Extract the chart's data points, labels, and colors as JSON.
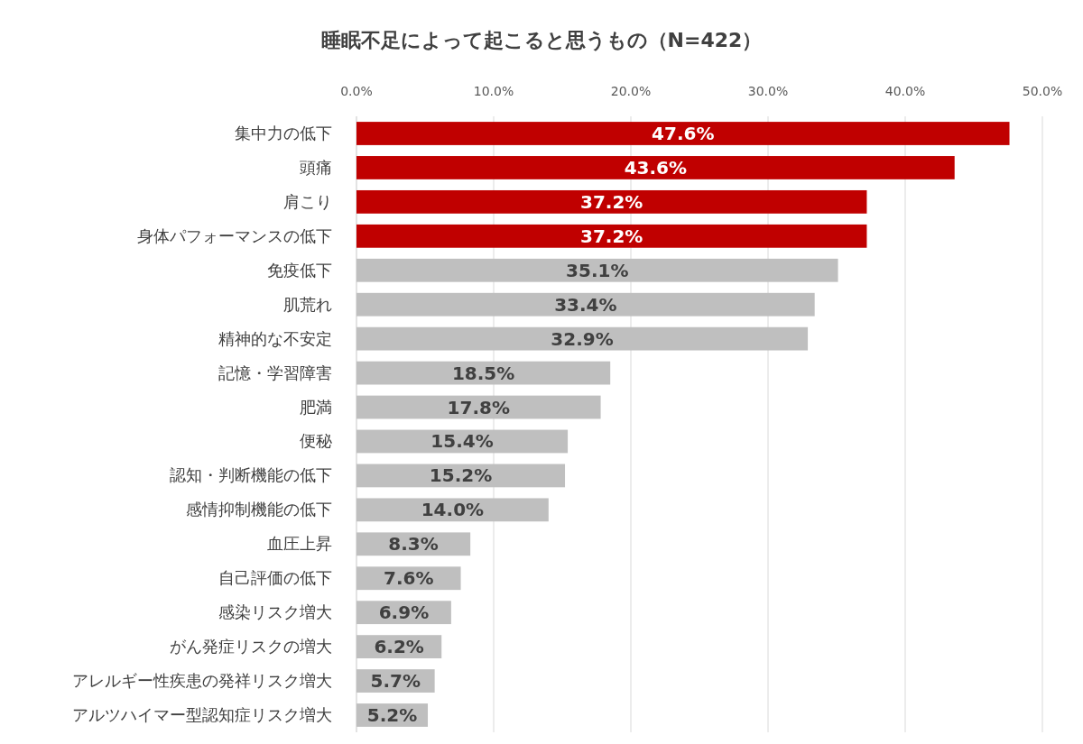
{
  "chart_data": {
    "type": "bar",
    "orientation": "horizontal",
    "title": "睡眠不足によって起こると思うもの（N=422）",
    "categories": [
      "集中力の低下",
      "頭痛",
      "肩こり",
      "身体パフォーマンスの低下",
      "免疫低下",
      "肌荒れ",
      "精神的な不安定",
      "記憶・学習障害",
      "肥満",
      "便秘",
      "認知・判断機能の低下",
      "感情抑制機能の低下",
      "血圧上昇",
      "自己評価の低下",
      "感染リスク増大",
      "がん発症リスクの増大",
      "アレルギー性疾患の発祥リスク増大",
      "アルツハイマー型認知症リスク増大"
    ],
    "values": [
      47.6,
      43.6,
      37.2,
      37.2,
      35.1,
      33.4,
      32.9,
      18.5,
      17.8,
      15.4,
      15.2,
      14.0,
      8.3,
      7.6,
      6.9,
      6.2,
      5.7,
      5.2
    ],
    "value_labels": [
      "47.6%",
      "43.6%",
      "37.2%",
      "37.2%",
      "35.1%",
      "33.4%",
      "32.9%",
      "18.5%",
      "17.8%",
      "15.4%",
      "15.2%",
      "14.0%",
      "8.3%",
      "7.6%",
      "6.9%",
      "6.2%",
      "5.7%",
      "5.2%"
    ],
    "colors": [
      "#c00000",
      "#c00000",
      "#c00000",
      "#c00000",
      "#bfbfbf",
      "#bfbfbf",
      "#bfbfbf",
      "#bfbfbf",
      "#bfbfbf",
      "#bfbfbf",
      "#bfbfbf",
      "#bfbfbf",
      "#bfbfbf",
      "#bfbfbf",
      "#bfbfbf",
      "#bfbfbf",
      "#bfbfbf",
      "#bfbfbf"
    ],
    "xlim": [
      0,
      50
    ],
    "xticks": [
      {
        "value": 0,
        "label": "0.0%"
      },
      {
        "value": 10,
        "label": "10.0%"
      },
      {
        "value": 20,
        "label": "20.0%"
      },
      {
        "value": 30,
        "label": "30.0%"
      },
      {
        "value": 40,
        "label": "40.0%"
      },
      {
        "value": 50,
        "label": "50.0%"
      }
    ],
    "grid": "x"
  }
}
